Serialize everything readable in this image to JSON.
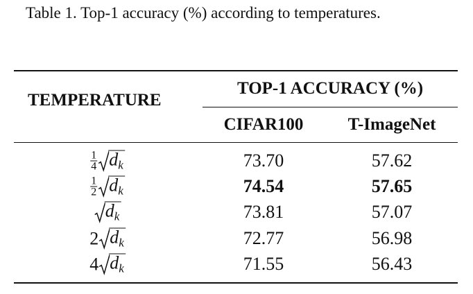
{
  "caption": "Table 1. Top-1 accuracy (%) according to temperatures.",
  "table": {
    "header": {
      "temperature": "TEMPERATURE",
      "group": "TOP-1 ACCURACY (%)",
      "columns": [
        "CIFAR100",
        "T-ImageNet"
      ]
    },
    "rows": [
      {
        "temperature": {
          "fraction": [
            "1",
            "4"
          ],
          "radicand": "d",
          "subscript": "k"
        },
        "values": [
          "73.70",
          "57.62"
        ],
        "bold": false
      },
      {
        "temperature": {
          "fraction": [
            "1",
            "2"
          ],
          "radicand": "d",
          "subscript": "k"
        },
        "values": [
          "74.54",
          "57.65"
        ],
        "bold": true
      },
      {
        "temperature": {
          "radicand": "d",
          "subscript": "k"
        },
        "values": [
          "73.81",
          "57.07"
        ],
        "bold": false
      },
      {
        "temperature": {
          "factor": "2",
          "radicand": "d",
          "subscript": "k"
        },
        "values": [
          "72.77",
          "56.98"
        ],
        "bold": false
      },
      {
        "temperature": {
          "factor": "4",
          "radicand": "d",
          "subscript": "k"
        },
        "values": [
          "71.55",
          "56.43"
        ],
        "bold": false
      }
    ]
  }
}
